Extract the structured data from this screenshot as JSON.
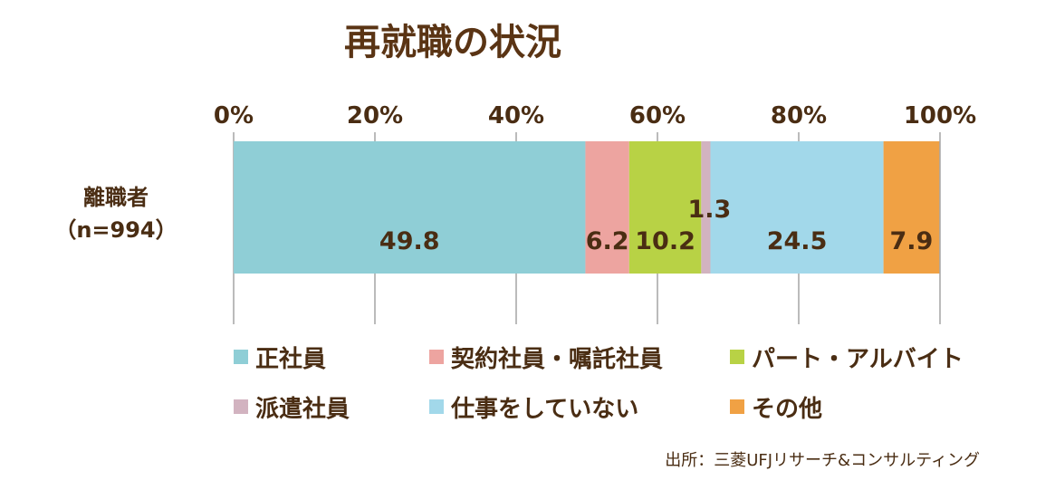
{
  "chart_data": {
    "type": "bar",
    "orientation": "horizontal-stacked",
    "title": "再就職の状況",
    "category_label_lines": [
      "離職者",
      "（n=994）"
    ],
    "x_ticks": [
      "0%",
      "20%",
      "40%",
      "60%",
      "80%",
      "100%"
    ],
    "xlim": [
      0,
      100
    ],
    "series": [
      {
        "name": "正社員",
        "value": 49.8,
        "color": "#8fced6",
        "label": "49.8"
      },
      {
        "name": "契約社員・嘱託社員",
        "value": 6.2,
        "color": "#eda4a0",
        "label": "6.2"
      },
      {
        "name": "パート・アルバイト",
        "value": 10.2,
        "color": "#b8d245",
        "label": "10.2"
      },
      {
        "name": "派遣社員",
        "value": 1.3,
        "color": "#d2b3c0",
        "label": "1.3"
      },
      {
        "name": "仕事をしていない",
        "value": 24.5,
        "color": "#a2d8ea",
        "label": "24.5"
      },
      {
        "name": "その他",
        "value": 7.9,
        "color": "#f0a144",
        "label": "7.9"
      }
    ],
    "legend_position": "bottom"
  },
  "source": "出所：三菱UFJリサーチ&コンサルティング"
}
